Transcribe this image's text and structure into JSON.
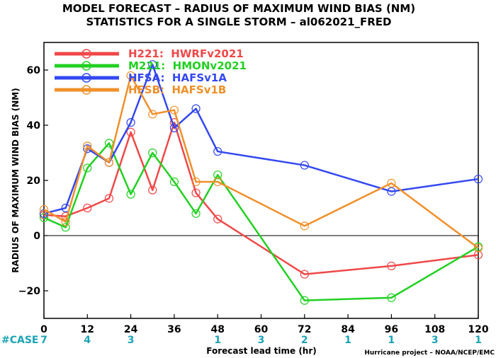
{
  "chart_data": {
    "type": "line",
    "title": "MODEL FORECAST – RADIUS OF MAXIMUM WIND BIAS (NM)",
    "subtitle": "STATISTICS FOR A SINGLE STORM – al062021_FRED",
    "xlabel": "Forecast lead time (hr)",
    "ylabel": "RADIUS OF MAXIMUM WIND BIAS (NM)",
    "xlim": [
      0,
      120
    ],
    "ylim": [
      -30,
      70
    ],
    "xticks": [
      0,
      12,
      24,
      36,
      48,
      60,
      72,
      84,
      96,
      108,
      120
    ],
    "yticks": [
      -20,
      0,
      20,
      40,
      60
    ],
    "zero_line": true,
    "legend_position": "top-left",
    "case_label": "#CASE",
    "case_counts": [
      {
        "x": 0,
        "n": "7"
      },
      {
        "x": 12,
        "n": "4"
      },
      {
        "x": 24,
        "n": "3"
      },
      {
        "x": 48,
        "n": "1"
      },
      {
        "x": 60,
        "n": "3"
      },
      {
        "x": 72,
        "n": "2"
      },
      {
        "x": 84,
        "n": "1"
      },
      {
        "x": 96,
        "n": "1"
      },
      {
        "x": 108,
        "n": "3"
      },
      {
        "x": 120,
        "n": "1"
      }
    ],
    "credit": "Hurricane project – NOAA/NCEP/EMC",
    "series": [
      {
        "name": "H221:  HWRFv2021",
        "color": "#f04848",
        "x": [
          0,
          6,
          12,
          18,
          24,
          30,
          36,
          42,
          48,
          72,
          96,
          120
        ],
        "y": [
          7.5,
          7,
          10,
          13.5,
          37.5,
          16.5,
          41,
          15.5,
          6,
          -14,
          -11,
          -7
        ]
      },
      {
        "name": "M221:  HMONv2021",
        "color": "#22d022",
        "x": [
          0,
          6,
          12,
          18,
          24,
          30,
          36,
          42,
          48,
          72,
          96,
          120
        ],
        "y": [
          6.5,
          3,
          24.5,
          33.5,
          15,
          30,
          19.5,
          8,
          22,
          -23.5,
          -22.5,
          -4
        ]
      },
      {
        "name": "HFSA:  HAFSv1A",
        "color": "#3348f0",
        "x": [
          0,
          6,
          12,
          18,
          24,
          30,
          36,
          42,
          48,
          72,
          96,
          120
        ],
        "y": [
          8,
          10,
          31.5,
          26.5,
          41,
          62,
          39,
          46,
          30.5,
          25.5,
          16,
          20.5
        ]
      },
      {
        "name": "HFSB:  HAFSv1B",
        "color": "#f0902a",
        "x": [
          0,
          6,
          12,
          18,
          24,
          30,
          36,
          42,
          48,
          72,
          96,
          120
        ],
        "y": [
          9.5,
          5,
          32.5,
          26.5,
          58,
          44,
          45.5,
          19.5,
          19.5,
          3.5,
          19,
          -4.5
        ]
      }
    ]
  }
}
